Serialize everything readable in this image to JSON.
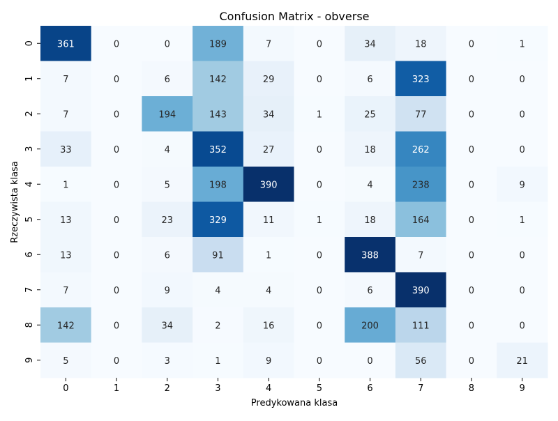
{
  "chart_data": {
    "type": "heatmap",
    "title": "Confusion Matrix - obverse",
    "xlabel": "Predykowana klasa",
    "ylabel": "Rzeczywista klasa",
    "x_categories": [
      "0",
      "1",
      "2",
      "3",
      "4",
      "5",
      "6",
      "7",
      "8",
      "9"
    ],
    "y_categories": [
      "0",
      "1",
      "2",
      "3",
      "4",
      "5",
      "6",
      "7",
      "8",
      "9"
    ],
    "values": [
      [
        361,
        0,
        0,
        189,
        7,
        0,
        34,
        18,
        0,
        1
      ],
      [
        7,
        0,
        6,
        142,
        29,
        0,
        6,
        323,
        0,
        0
      ],
      [
        7,
        0,
        194,
        143,
        34,
        1,
        25,
        77,
        0,
        0
      ],
      [
        33,
        0,
        4,
        352,
        27,
        0,
        18,
        262,
        0,
        0
      ],
      [
        1,
        0,
        5,
        198,
        390,
        0,
        4,
        238,
        0,
        9
      ],
      [
        13,
        0,
        23,
        329,
        11,
        1,
        18,
        164,
        0,
        1
      ],
      [
        13,
        0,
        6,
        91,
        1,
        0,
        388,
        7,
        0,
        0
      ],
      [
        7,
        0,
        9,
        4,
        4,
        0,
        6,
        390,
        0,
        0
      ],
      [
        142,
        0,
        34,
        2,
        16,
        0,
        200,
        111,
        0,
        0
      ],
      [
        5,
        0,
        3,
        1,
        9,
        0,
        0,
        56,
        0,
        21
      ]
    ],
    "colormap": "Blues",
    "color_range": [
      0,
      390
    ],
    "colorbar": false,
    "grid": false
  },
  "colors": {
    "low": "#f7fbff",
    "high": "#08306b",
    "text_dark": "#262626",
    "text_light": "#ffffff"
  }
}
